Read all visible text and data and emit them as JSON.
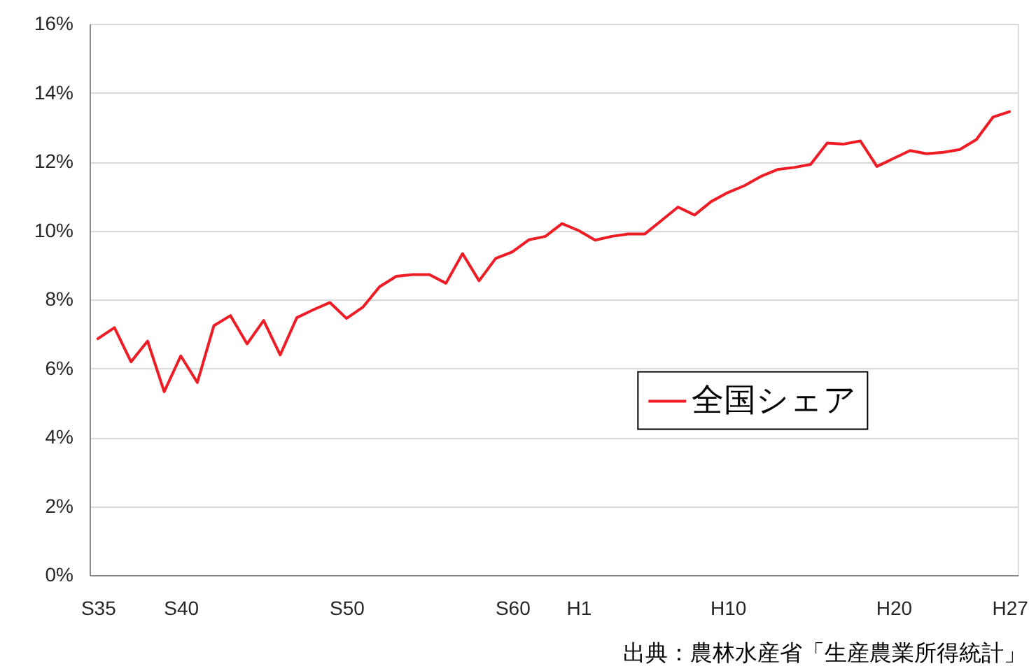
{
  "chart_data": {
    "type": "line",
    "categories": [
      "S35",
      null,
      null,
      null,
      null,
      "S40",
      null,
      null,
      null,
      null,
      null,
      null,
      null,
      null,
      null,
      "S50",
      null,
      null,
      null,
      null,
      null,
      null,
      null,
      null,
      null,
      "S60",
      null,
      null,
      null,
      "H1",
      null,
      null,
      null,
      null,
      null,
      null,
      null,
      null,
      "H10",
      null,
      null,
      null,
      null,
      null,
      null,
      null,
      null,
      null,
      "H20",
      null,
      null,
      null,
      null,
      null,
      null,
      "H27"
    ],
    "series": [
      {
        "name": "全国シェア",
        "color": "#ee1c25",
        "values": [
          6.86,
          7.18,
          6.19,
          6.79,
          5.32,
          6.36,
          5.59,
          7.24,
          7.53,
          6.71,
          7.39,
          6.39,
          7.47,
          7.7,
          7.91,
          7.45,
          7.78,
          8.37,
          8.67,
          8.72,
          8.72,
          8.47,
          9.33,
          8.54,
          9.19,
          9.38,
          9.73,
          9.83,
          10.2,
          10.0,
          9.72,
          9.83,
          9.9,
          9.9,
          10.29,
          10.68,
          10.45,
          10.84,
          11.1,
          11.3,
          11.57,
          11.77,
          11.83,
          11.92,
          12.54,
          12.51,
          12.6,
          11.86,
          12.09,
          12.32,
          12.23,
          12.27,
          12.35,
          12.64,
          13.29,
          13.45
        ]
      }
    ],
    "ylim": [
      0,
      16
    ],
    "yticks": [
      {
        "value": 0,
        "label": "0%"
      },
      {
        "value": 2,
        "label": "2%"
      },
      {
        "value": 4,
        "label": "4%"
      },
      {
        "value": 6,
        "label": "6%"
      },
      {
        "value": 8,
        "label": "8%"
      },
      {
        "value": 10,
        "label": "10%"
      },
      {
        "value": 12,
        "label": "12%"
      },
      {
        "value": 14,
        "label": "14%"
      },
      {
        "value": 16,
        "label": "16%"
      }
    ],
    "grid": "y",
    "legend": "bottom right",
    "line_style": "solid",
    "annotations": [
      "出典：農林水産省「生産農業所得統計」"
    ]
  }
}
